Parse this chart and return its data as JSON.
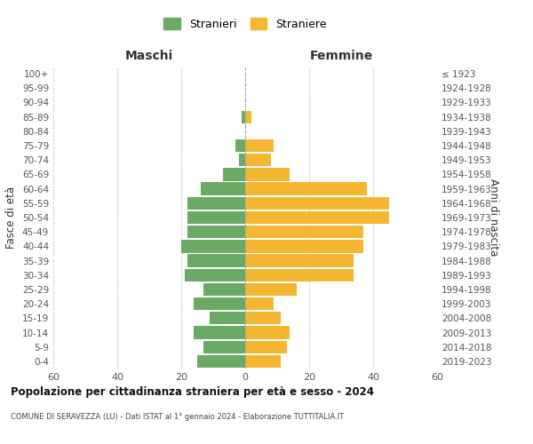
{
  "age_groups": [
    "0-4",
    "5-9",
    "10-14",
    "15-19",
    "20-24",
    "25-29",
    "30-34",
    "35-39",
    "40-44",
    "45-49",
    "50-54",
    "55-59",
    "60-64",
    "65-69",
    "70-74",
    "75-79",
    "80-84",
    "85-89",
    "90-94",
    "95-99",
    "100+"
  ],
  "birth_years": [
    "2019-2023",
    "2014-2018",
    "2009-2013",
    "2004-2008",
    "1999-2003",
    "1994-1998",
    "1989-1993",
    "1984-1988",
    "1979-1983",
    "1974-1978",
    "1969-1973",
    "1964-1968",
    "1959-1963",
    "1954-1958",
    "1949-1953",
    "1944-1948",
    "1939-1943",
    "1934-1938",
    "1929-1933",
    "1924-1928",
    "≤ 1923"
  ],
  "males": [
    15,
    13,
    16,
    11,
    16,
    13,
    19,
    18,
    20,
    18,
    18,
    18,
    14,
    7,
    2,
    3,
    0,
    1,
    0,
    0,
    0
  ],
  "females": [
    11,
    13,
    14,
    11,
    9,
    16,
    34,
    34,
    37,
    37,
    45,
    45,
    38,
    14,
    8,
    9,
    0,
    2,
    0,
    0,
    0
  ],
  "male_color": "#6aaa64",
  "female_color": "#f5b731",
  "background_color": "#ffffff",
  "grid_color": "#cccccc",
  "title": "Popolazione per cittadinanza straniera per età e sesso - 2024",
  "subtitle": "COMUNE DI SERAVEZZA (LU) - Dati ISTAT al 1° gennaio 2024 - Elaborazione TUTTITALIA.IT",
  "xlabel_left": "Maschi",
  "xlabel_right": "Femmine",
  "ylabel_left": "Fasce di età",
  "ylabel_right": "Anni di nascita",
  "legend_male": "Stranieri",
  "legend_female": "Straniere",
  "xlim": 60,
  "tick_color": "#555555",
  "bar_gap": 0.12
}
